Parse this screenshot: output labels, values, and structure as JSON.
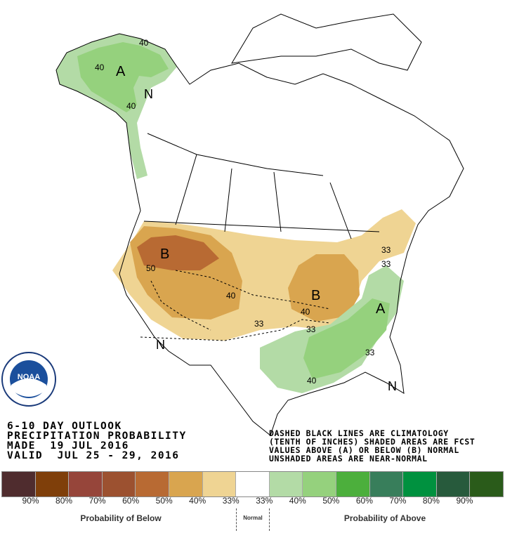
{
  "header": {
    "lines": [
      "6-10 DAY OUTLOOK",
      "PRECIPITATION PROBABILITY",
      "MADE  19 JUL 2016",
      "VALID  JUL 25 - 29, 2016"
    ]
  },
  "notes": {
    "lines": [
      "DASHED BLACK LINES ARE CLIMATOLOGY",
      "(TENTH OF INCHES) SHADED AREAS ARE FCST",
      "VALUES ABOVE (A) OR BELOW (B) NORMAL",
      "UNSHADED AREAS ARE NEAR-NORMAL"
    ]
  },
  "logo": {
    "text": "NOAA",
    "ring_text": "NATIONAL OCEANIC AND ATMOSPHERIC ADMINISTRATION · U.S. DEPARTMENT OF COMMERCE"
  },
  "map_labels": {
    "alaska_A": "A",
    "alaska_40a": "40",
    "alaska_40b": "40",
    "alaska_40c": "40",
    "alaska_N": "N",
    "west_B": "B",
    "west_50": "50",
    "west_40": "40",
    "west_33": "33",
    "west_N": "N",
    "midwest_B": "B",
    "midwest_40": "40",
    "midwest_33": "33",
    "ne_33a": "33",
    "ne_33b": "33",
    "east_A": "A",
    "east_33": "33",
    "gulf_40": "40",
    "se_N": "N"
  },
  "legend": {
    "colors": [
      "#4f2c2e",
      "#7f3f0a",
      "#96453a",
      "#9c5130",
      "#b86a33",
      "#d9a54f",
      "#efd493",
      "#ffffff",
      "#b3dba6",
      "#95d17d",
      "#4caf3c",
      "#387e5b",
      "#00913f",
      "#275a3c",
      "#2a5b1a"
    ],
    "ticks": [
      "90%",
      "80%",
      "70%",
      "60%",
      "50%",
      "40%",
      "33%",
      "33%",
      "40%",
      "50%",
      "60%",
      "70%",
      "80%",
      "90%"
    ],
    "below_label": "Probability of Below",
    "normal_label": "Normal",
    "above_label": "Probability of Above"
  }
}
